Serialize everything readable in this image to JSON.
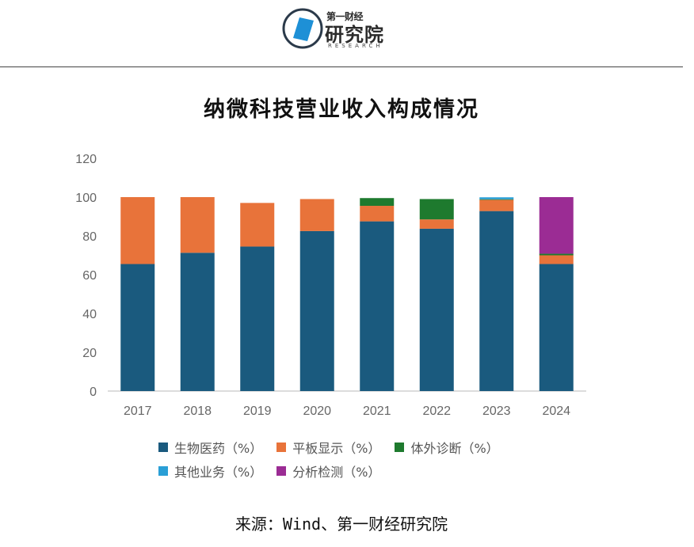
{
  "header": {
    "logo_top": "第一财经",
    "logo_main": "研究院",
    "logo_sub": "RESEARCH"
  },
  "chart_data": {
    "type": "bar",
    "stacked": true,
    "title": "纳微科技营业收入构成情况",
    "categories": [
      "2017",
      "2018",
      "2019",
      "2020",
      "2021",
      "2022",
      "2023",
      "2024"
    ],
    "ylim": [
      0,
      120
    ],
    "yticks": [
      0,
      20,
      40,
      60,
      80,
      100,
      120
    ],
    "series": [
      {
        "name": "生物医药（%）",
        "color": "#1a5a7e",
        "values": [
          65.5,
          71.3,
          74.5,
          82.5,
          87.5,
          83.7,
          92.8,
          65.5
        ]
      },
      {
        "name": "平板显示（%）",
        "color": "#e8733a",
        "values": [
          34.5,
          28.7,
          22.5,
          16.5,
          8.0,
          4.8,
          5.8,
          4.5
        ]
      },
      {
        "name": "体外诊断（%）",
        "color": "#1e7a2e",
        "values": [
          0,
          0,
          0,
          0,
          4.0,
          10.5,
          0.3,
          0.8
        ]
      },
      {
        "name": "其他业务（%）",
        "color": "#2a9fd6",
        "values": [
          0,
          0,
          0,
          0,
          0,
          0,
          1.0,
          0
        ]
      },
      {
        "name": "分析检测（%）",
        "color": "#9b2c94",
        "values": [
          0,
          0,
          0,
          0,
          0,
          0,
          0,
          29.2
        ]
      }
    ],
    "grid": false,
    "legend": "bottom"
  },
  "footer": {
    "source": "来源：Wind、第一财经研究院"
  }
}
